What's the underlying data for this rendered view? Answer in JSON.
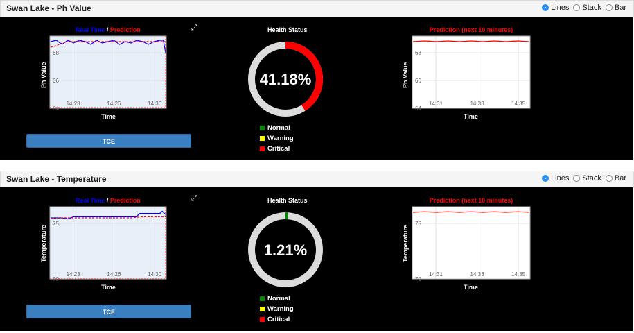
{
  "panels": [
    {
      "title": "Swan Lake - Ph Value",
      "options": [
        "Lines",
        "Stack",
        "Bar"
      ],
      "selected_option": "Lines",
      "realtime_label": "Real Time",
      "slash": " / ",
      "prediction_label": "Prediction",
      "tce_label": "TCE",
      "health_title": "Health Status",
      "health_percent": "41.18%",
      "health_fraction": 0.4118,
      "legend": [
        "Normal",
        "Warning",
        "Critical"
      ],
      "pred_title": "Prediction (next 10 minutes)",
      "chart_data": [
        {
          "type": "line",
          "title": "Real Time / Prediction",
          "xlabel": "Time",
          "ylabel": "Ph Value",
          "ylim": [
            64,
            69.2
          ],
          "yticks": [
            "68",
            "66",
            "64"
          ],
          "xticks": [
            "14:23",
            "14:26",
            "14:30"
          ],
          "series": [
            {
              "name": "Real Time",
              "color": "#0000ff",
              "x": [
                0,
                0.05,
                0.1,
                0.15,
                0.2,
                0.25,
                0.3,
                0.35,
                0.4,
                0.45,
                0.5,
                0.55,
                0.6,
                0.65,
                0.7,
                0.75,
                0.8,
                0.85,
                0.9,
                0.95,
                0.98,
                1.0
              ],
              "values": [
                68.8,
                68.9,
                68.6,
                68.9,
                68.7,
                68.9,
                68.8,
                68.6,
                68.9,
                68.7,
                68.8,
                68.9,
                68.6,
                68.8,
                68.7,
                68.9,
                68.8,
                68.6,
                68.8,
                68.9,
                68.9,
                68.0
              ]
            },
            {
              "name": "Prediction",
              "color": "#ff0000",
              "x": [
                0,
                0.05,
                0.1,
                0.15,
                0.2,
                0.3,
                0.4,
                0.5,
                0.6,
                0.7,
                0.8,
                0.9,
                1.0
              ],
              "values": [
                68.4,
                68.5,
                68.7,
                68.8,
                68.8,
                68.8,
                68.8,
                68.8,
                68.8,
                68.8,
                68.8,
                68.8,
                68.8
              ]
            }
          ]
        },
        {
          "type": "line",
          "title": "Prediction (next 10 minutes)",
          "xlabel": "Time",
          "ylabel": "Ph Value",
          "ylim": [
            64,
            69.2
          ],
          "yticks": [
            "68",
            "66",
            "64"
          ],
          "xticks": [
            "14:31",
            "14:33",
            "14:35"
          ],
          "series": [
            {
              "name": "Prediction",
              "color": "#ff0000",
              "x": [
                0,
                0.1,
                0.2,
                0.3,
                0.4,
                0.5,
                0.6,
                0.7,
                0.8,
                0.9,
                1.0
              ],
              "values": [
                68.8,
                68.85,
                68.8,
                68.85,
                68.8,
                68.85,
                68.8,
                68.85,
                68.8,
                68.85,
                68.8
              ]
            }
          ]
        }
      ]
    },
    {
      "title": "Swan Lake - Temperature",
      "options": [
        "Lines",
        "Stack",
        "Bar"
      ],
      "selected_option": "Lines",
      "realtime_label": "Real Time",
      "slash": " / ",
      "prediction_label": "Prediction",
      "tce_label": "TCE",
      "health_title": "Health Status",
      "health_percent": "1.21%",
      "health_fraction": 0.0121,
      "legend": [
        "Normal",
        "Warning",
        "Critical"
      ],
      "pred_title": "Prediction (next 10 minutes)",
      "chart_data": [
        {
          "type": "line",
          "title": "Real Time / Prediction",
          "xlabel": "Time",
          "ylabel": "Temperature",
          "ylim": [
            70,
            76.5
          ],
          "yticks": [
            "75",
            "70"
          ],
          "xticks": [
            "14:23",
            "14:26",
            "14:30"
          ],
          "series": [
            {
              "name": "Real Time",
              "color": "#0000ff",
              "x": [
                0,
                0.1,
                0.15,
                0.2,
                0.3,
                0.4,
                0.5,
                0.6,
                0.7,
                0.75,
                0.77,
                0.8,
                0.9,
                0.95,
                0.97,
                1.0
              ],
              "values": [
                75.5,
                75.5,
                75.4,
                75.6,
                75.6,
                75.6,
                75.6,
                75.6,
                75.6,
                75.6,
                75.9,
                75.9,
                75.9,
                75.9,
                76.1,
                75.8
              ]
            },
            {
              "name": "Prediction",
              "color": "#ff0000",
              "x": [
                0,
                0.1,
                0.2,
                0.3,
                0.4,
                0.5,
                0.6,
                0.7,
                0.8,
                0.9,
                1.0
              ],
              "values": [
                75.4,
                75.5,
                75.5,
                75.5,
                75.5,
                75.5,
                75.5,
                75.5,
                75.6,
                75.6,
                75.6
              ]
            }
          ]
        },
        {
          "type": "line",
          "title": "Prediction (next 10 minutes)",
          "xlabel": "Time",
          "ylabel": "Temperature",
          "ylim": [
            70,
            76.5
          ],
          "yticks": [
            "75",
            "70"
          ],
          "xticks": [
            "14:31",
            "14:33",
            "14:35"
          ],
          "series": [
            {
              "name": "Prediction",
              "color": "#ff0000",
              "x": [
                0,
                0.1,
                0.2,
                0.3,
                0.4,
                0.5,
                0.6,
                0.7,
                0.8,
                0.9,
                1.0
              ],
              "values": [
                76.0,
                76.05,
                76.0,
                76.05,
                76.0,
                76.05,
                76.0,
                76.05,
                76.0,
                76.05,
                76.0
              ]
            }
          ]
        }
      ]
    }
  ],
  "colors": {
    "normal": "#008800",
    "warning": "#ffff00",
    "critical": "#ff0000",
    "ring_bg": "#dcdcdc",
    "accent": "#3a7fc0"
  }
}
